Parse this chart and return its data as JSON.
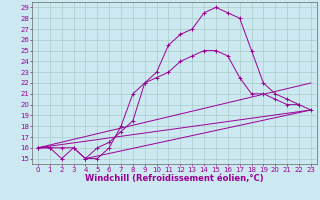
{
  "xlabel": "Windchill (Refroidissement éolien,°C)",
  "bg_color": "#cce8f0",
  "grid_color": "#aacccc",
  "line_color": "#990099",
  "spine_color": "#666666",
  "xlim": [
    -0.5,
    23.5
  ],
  "ylim": [
    14.5,
    29.5
  ],
  "yticks": [
    15,
    16,
    17,
    18,
    19,
    20,
    21,
    22,
    23,
    24,
    25,
    26,
    27,
    28,
    29
  ],
  "xticks": [
    0,
    1,
    2,
    3,
    4,
    5,
    6,
    7,
    8,
    9,
    10,
    11,
    12,
    13,
    14,
    15,
    16,
    17,
    18,
    19,
    20,
    21,
    22,
    23
  ],
  "curve1_x": [
    0,
    1,
    2,
    3,
    4,
    5,
    6,
    7,
    8,
    9,
    10,
    11,
    12,
    13,
    14,
    15,
    16,
    17,
    18,
    19,
    20,
    21,
    22,
    23
  ],
  "curve1_y": [
    16,
    16,
    16,
    16,
    15,
    15,
    16,
    18,
    21,
    22,
    22.5,
    23,
    24,
    24.5,
    25,
    25,
    24.5,
    22.5,
    21,
    21,
    20.5,
    20,
    20,
    19.5
  ],
  "curve2_x": [
    0,
    1,
    2,
    3,
    4,
    5,
    6,
    7,
    8,
    9,
    10,
    11,
    12,
    13,
    14,
    15,
    16,
    17,
    18,
    19,
    20,
    21,
    22
  ],
  "curve2_y": [
    16,
    16,
    15,
    16,
    15,
    16,
    16.5,
    17.5,
    18.5,
    22,
    23,
    25.5,
    26.5,
    27,
    28.5,
    29,
    28.5,
    28,
    25,
    22,
    21,
    20.5,
    20
  ],
  "line1_x": [
    0,
    23
  ],
  "line1_y": [
    16,
    19.5
  ],
  "line2_x": [
    4,
    23
  ],
  "line2_y": [
    15,
    19.5
  ],
  "line3_x": [
    0,
    23
  ],
  "line3_y": [
    16,
    22
  ],
  "tick_fontsize": 5,
  "xlabel_fontsize": 6
}
